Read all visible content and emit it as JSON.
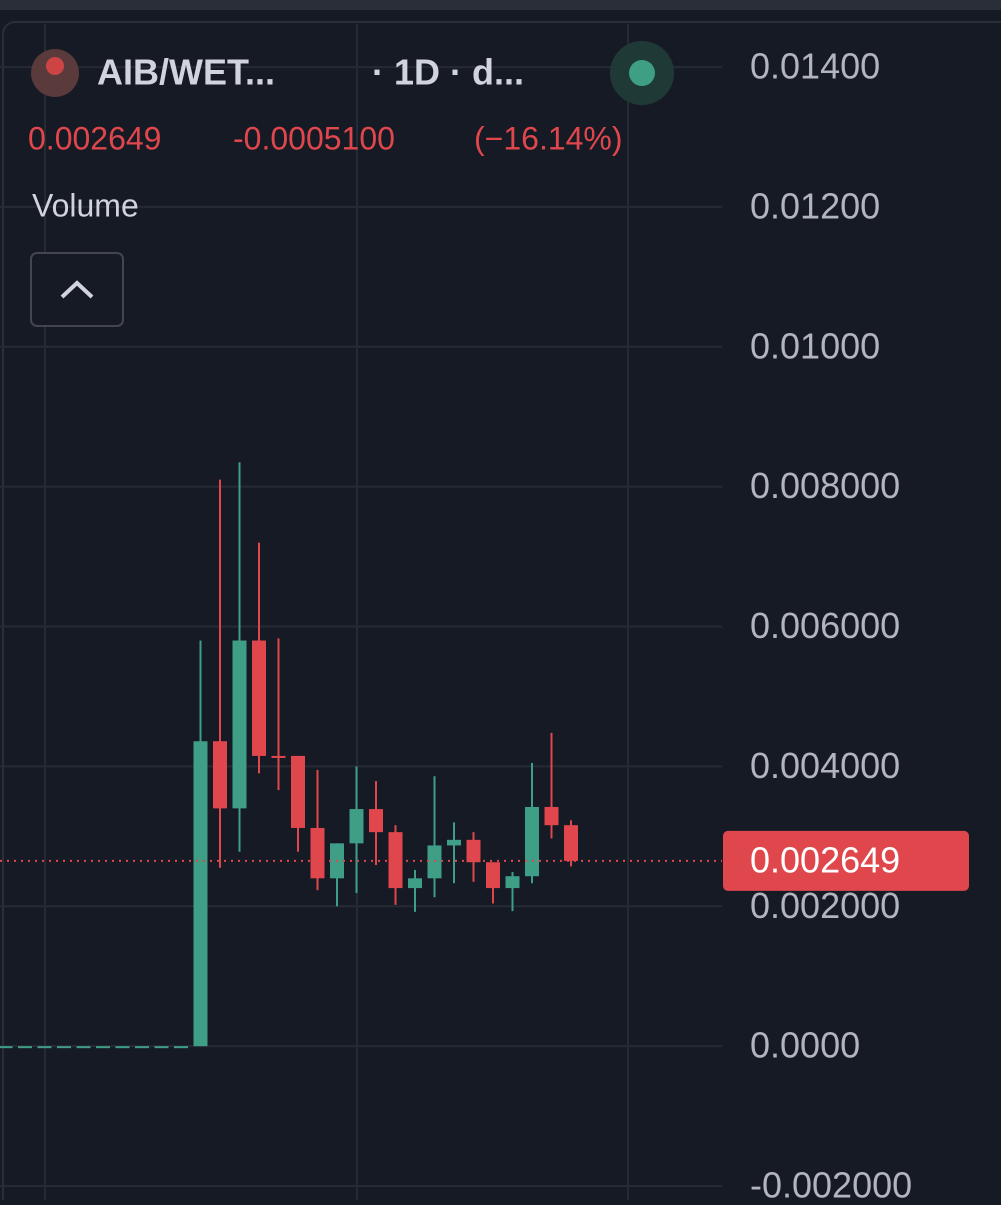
{
  "header": {
    "pair": "AIB/WET...",
    "interval": "· 1D · d...",
    "price": "0.002649",
    "change": "-0.0005100",
    "change_pct": "(−16.14%)",
    "indicator": "Volume"
  },
  "chart_data": {
    "type": "candlestick",
    "categories": [
      null,
      null,
      null,
      null,
      null,
      null,
      null,
      null,
      null,
      null,
      null,
      null,
      null,
      null,
      null,
      null,
      null,
      null,
      null,
      null,
      null,
      null,
      null,
      null,
      null,
      null,
      null,
      null,
      null,
      null
    ],
    "open": [
      0,
      0,
      0,
      0,
      0,
      0,
      0,
      0,
      0,
      0,
      0,
      0.00436,
      0.0034,
      0.0058,
      0.00415,
      0.00415,
      0.00312,
      0.0024,
      0.0029,
      0.00339,
      0.00306,
      0.00226,
      0.0024,
      0.00287,
      0.00295,
      0.00263,
      0.00226,
      0.00243,
      0.00342,
      0.00316
    ],
    "high": [
      0,
      0,
      0,
      0,
      0,
      0,
      0,
      0,
      0,
      0,
      0.0058,
      0.0081,
      0.00835,
      0.0072,
      0.00583,
      0.00415,
      0.00395,
      0.0029,
      0.004,
      0.00379,
      0.00316,
      0.00252,
      0.00386,
      0.0032,
      0.00306,
      0.00263,
      0.00249,
      0.00405,
      0.00448,
      0.00323
    ],
    "low": [
      0,
      0,
      0,
      0,
      0,
      0,
      0,
      0,
      0,
      0,
      0,
      0.00255,
      0.00278,
      0.0039,
      0.00366,
      0.00278,
      0.00223,
      0.002,
      0.00219,
      0.00259,
      0.00202,
      0.00192,
      0.00213,
      0.00233,
      0.00235,
      0.00204,
      0.00193,
      0.00233,
      0.00297,
      0.00257
    ],
    "close": [
      0,
      0,
      0,
      0,
      0,
      0,
      0,
      0,
      0,
      0,
      0.00436,
      0.0034,
      0.0058,
      0.00415,
      0.00413,
      0.00312,
      0.0024,
      0.0029,
      0.00339,
      0.00306,
      0.00226,
      0.0024,
      0.00287,
      0.00295,
      0.00263,
      0.00226,
      0.00243,
      0.00342,
      0.00316,
      0.002649
    ],
    "up_color": "#3f9e86",
    "down_color": "#e0474c",
    "last": {
      "value": 0.002649,
      "label": "0.002649"
    },
    "ylim": [
      -0.0022,
      0.01453
    ],
    "yticks": [
      {
        "value": 0.014,
        "label": "0.01400"
      },
      {
        "value": 0.012,
        "label": "0.01200"
      },
      {
        "value": 0.01,
        "label": "0.01000"
      },
      {
        "value": 0.008,
        "label": "0.008000"
      },
      {
        "value": 0.006,
        "label": "0.006000"
      },
      {
        "value": 0.004,
        "label": "0.004000"
      },
      {
        "value": 0.002,
        "label": "0.002000"
      },
      {
        "value": 0,
        "label": "0.0000"
      },
      {
        "value": -0.002,
        "label": "-0.002000"
      }
    ],
    "grid": true
  }
}
